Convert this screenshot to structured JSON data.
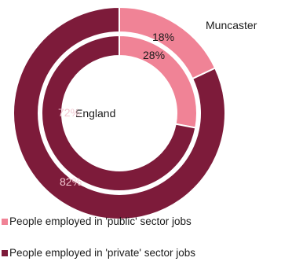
{
  "chart_data": {
    "type": "pie",
    "style": "nested-donut",
    "rings": [
      {
        "name": "Muncaster",
        "position": "outer",
        "slices": [
          {
            "label": "People employed in 'public' sector jobs",
            "value": 18,
            "display": "18%"
          },
          {
            "label": "People employed in 'private' sector jobs",
            "value": 82,
            "display": "82%"
          }
        ]
      },
      {
        "name": "England",
        "position": "inner",
        "slices": [
          {
            "label": "People employed in 'public' sector jobs",
            "value": 28,
            "display": "28%"
          },
          {
            "label": "People employed in 'private' sector jobs",
            "value": 72,
            "display": "72%"
          }
        ]
      }
    ],
    "legend": [
      {
        "label": "People employed in 'public' sector jobs",
        "color": "#F08396"
      },
      {
        "label": "People employed in 'private' sector jobs",
        "color": "#7D1B3A"
      }
    ],
    "legend_position": "bottom-left"
  }
}
